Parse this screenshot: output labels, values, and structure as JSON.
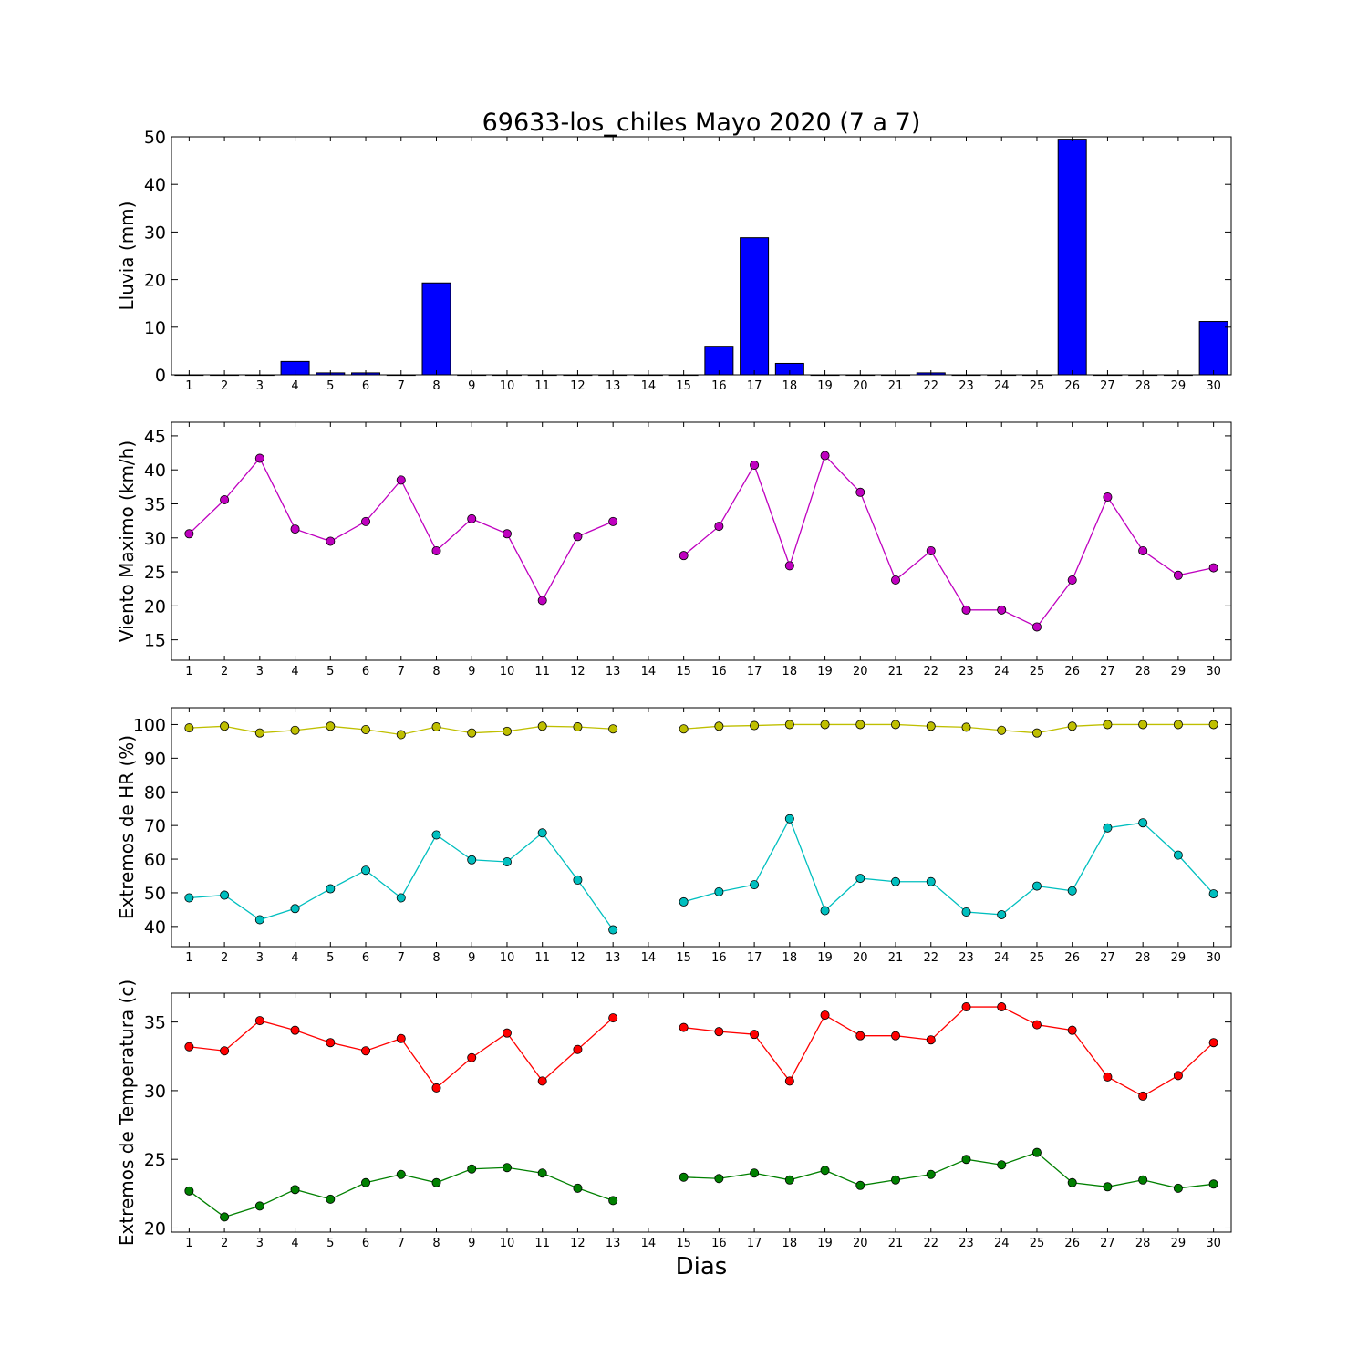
{
  "chart_data": {
    "title": "69633-los_chiles Mayo 2020  (7 a 7)",
    "xlabel": "Dias",
    "days": [
      1,
      2,
      3,
      4,
      5,
      6,
      7,
      8,
      9,
      10,
      11,
      12,
      13,
      14,
      15,
      16,
      17,
      18,
      19,
      20,
      21,
      22,
      23,
      24,
      25,
      26,
      27,
      28,
      29,
      30
    ],
    "panels": [
      {
        "type": "bar",
        "ylabel": "Lluvia (mm)",
        "ylim": [
          0,
          50
        ],
        "yticks": [
          0,
          10,
          20,
          30,
          40,
          50
        ],
        "series": [
          {
            "color": "#0000ff",
            "values": [
              0,
              0,
              0,
              2.8,
              0.4,
              0.4,
              0,
              19.3,
              0,
              0,
              0,
              0,
              0,
              0,
              0,
              6.0,
              28.8,
              2.4,
              0,
              0,
              0,
              0.4,
              0,
              0,
              0,
              49.5,
              0,
              0,
              0,
              11.2
            ]
          }
        ]
      },
      {
        "type": "line",
        "ylabel": "Viento Maximo (km/h)",
        "ylim": [
          12,
          47
        ],
        "yticks": [
          15,
          20,
          25,
          30,
          35,
          40,
          45
        ],
        "series": [
          {
            "color": "#bf00bf",
            "values": [
              30.6,
              35.6,
              41.7,
              31.3,
              29.5,
              32.4,
              38.5,
              28.1,
              32.8,
              30.6,
              20.8,
              30.2,
              32.4,
              null,
              27.4,
              31.7,
              40.7,
              25.9,
              42.1,
              36.7,
              23.8,
              28.1,
              19.4,
              19.4,
              16.9,
              23.8,
              36.0,
              28.1,
              24.5,
              25.6
            ]
          }
        ]
      },
      {
        "type": "line",
        "ylabel": "Extremos de HR (%)",
        "ylim": [
          34,
          105
        ],
        "yticks": [
          40,
          50,
          60,
          70,
          80,
          90,
          100
        ],
        "series": [
          {
            "color": "#bfbf00",
            "values": [
              99,
              99.5,
              97.5,
              98.3,
              99.5,
              98.5,
              97,
              99.3,
              97.5,
              98,
              99.5,
              99.3,
              98.7,
              null,
              98.7,
              99.5,
              99.7,
              100,
              100,
              100,
              100,
              99.5,
              99.2,
              98.3,
              97.5,
              99.5,
              100,
              100,
              100,
              100
            ]
          },
          {
            "color": "#00bfbf",
            "values": [
              48.5,
              49.3,
              42,
              45.3,
              51.2,
              56.7,
              48.5,
              67.2,
              59.8,
              59.2,
              67.8,
              53.8,
              39,
              null,
              47.3,
              50.3,
              52.4,
              72,
              44.7,
              54.3,
              53.3,
              53.3,
              44.3,
              43.5,
              52,
              50.6,
              69.3,
              70.8,
              61.2,
              49.7
            ]
          }
        ]
      },
      {
        "type": "line",
        "ylabel": "Extremos de Temperatura (c)",
        "ylim": [
          19.7,
          37.1
        ],
        "yticks": [
          20,
          25,
          30,
          35
        ],
        "series": [
          {
            "color": "#ff0000",
            "values": [
              33.2,
              32.9,
              35.1,
              34.4,
              33.5,
              32.9,
              33.8,
              30.2,
              32.4,
              34.2,
              30.7,
              33.0,
              35.3,
              null,
              34.6,
              34.3,
              34.1,
              30.7,
              35.5,
              34.0,
              34.0,
              33.7,
              36.1,
              36.1,
              34.8,
              34.4,
              31.0,
              29.6,
              31.1,
              33.5
            ]
          },
          {
            "color": "#008000",
            "values": [
              22.7,
              20.8,
              21.6,
              22.8,
              22.1,
              23.3,
              23.9,
              23.3,
              24.3,
              24.4,
              24.0,
              22.9,
              22.0,
              null,
              23.7,
              23.6,
              24.0,
              23.5,
              24.2,
              23.1,
              23.5,
              23.9,
              25.0,
              24.6,
              25.5,
              23.3,
              23.0,
              23.5,
              22.9,
              23.2
            ]
          }
        ]
      }
    ]
  }
}
